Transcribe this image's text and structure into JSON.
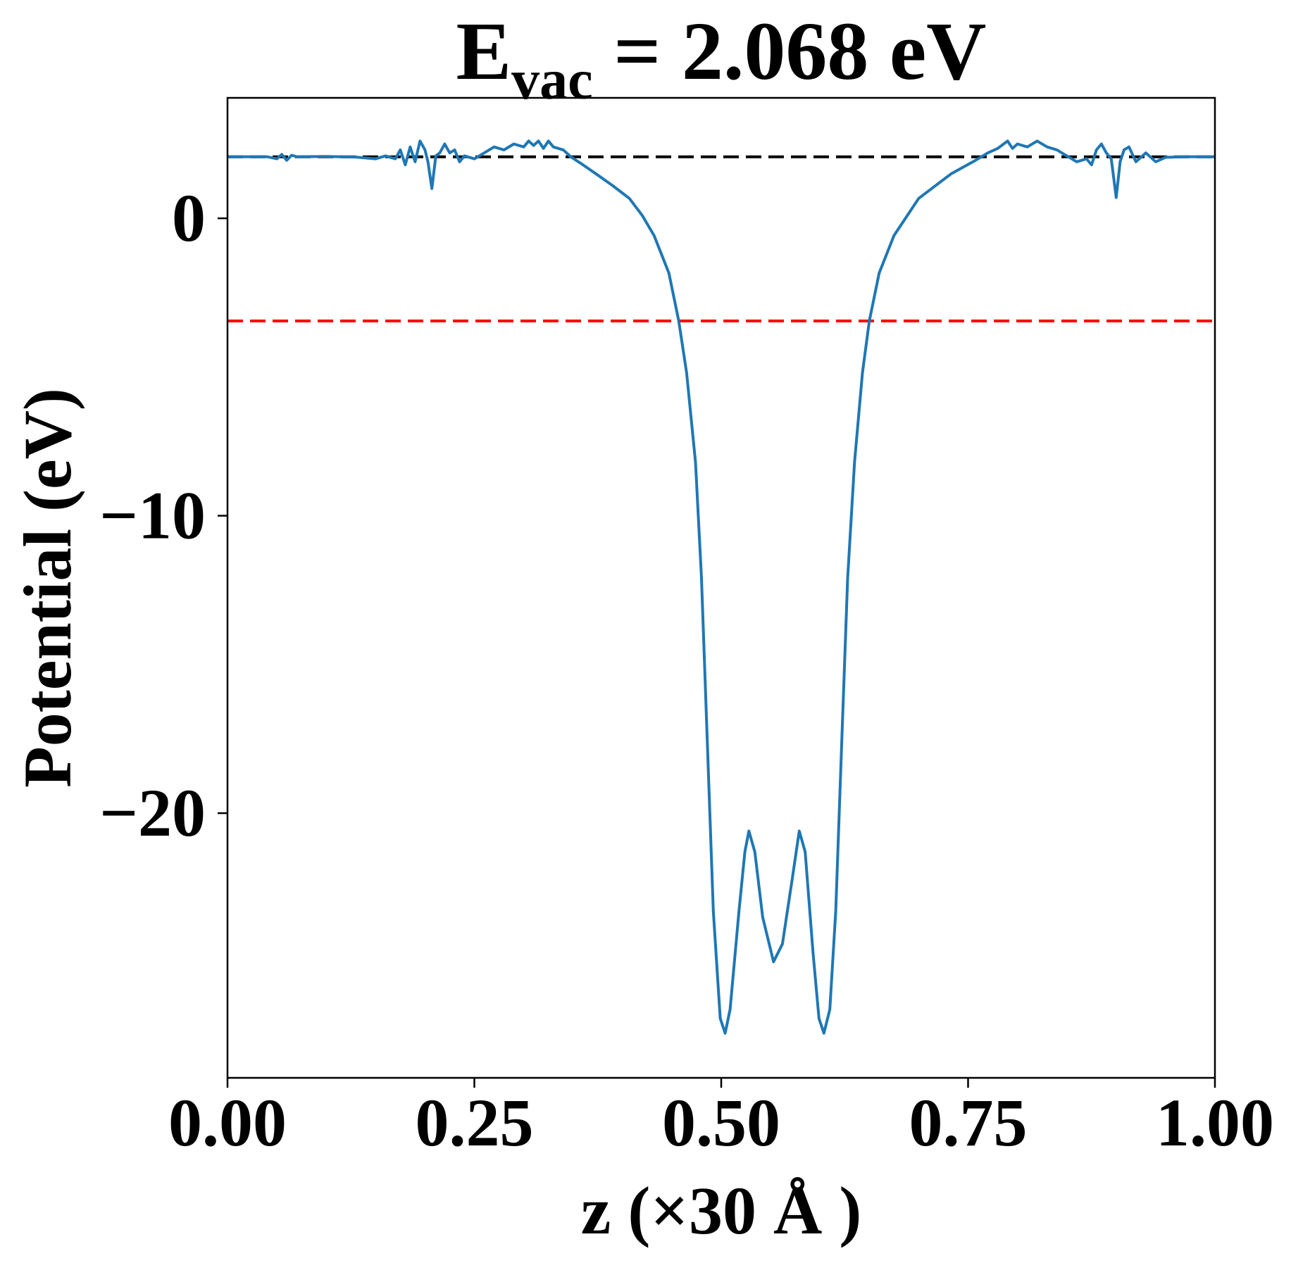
{
  "chart_data": {
    "type": "line",
    "title": {
      "main": "E",
      "sub": "vac",
      "rest": " = 2.068 eV"
    },
    "xlabel": "z (×30 Å )",
    "ylabel": "Potential (eV)",
    "xlim": [
      0,
      1
    ],
    "ylim": [
      -28.9,
      4.05
    ],
    "xticks": [
      0,
      0.25,
      0.5,
      0.75,
      1.0
    ],
    "xtick_labels": [
      "0.00",
      "0.25",
      "0.50",
      "0.75",
      "1.00"
    ],
    "yticks": [
      0,
      -10,
      -20
    ],
    "ytick_labels": [
      "0",
      "−10",
      "−20"
    ],
    "grid": false,
    "hlines": [
      {
        "y": 2.068,
        "color": "#000000",
        "style": "dashed"
      },
      {
        "y": -3.45,
        "color": "#ff0000",
        "style": "dashed"
      }
    ],
    "series": [
      {
        "color": "#1f77b4",
        "x": [
          0,
          0.02,
          0.04,
          0.05,
          0.055,
          0.06,
          0.065,
          0.07,
          0.1,
          0.13,
          0.15,
          0.16,
          0.17,
          0.175,
          0.18,
          0.185,
          0.19,
          0.195,
          0.2,
          0.203,
          0.207,
          0.211,
          0.215,
          0.22,
          0.225,
          0.23,
          0.235,
          0.24,
          0.25,
          0.26,
          0.27,
          0.28,
          0.29,
          0.3,
          0.305,
          0.31,
          0.315,
          0.32,
          0.325,
          0.33,
          0.34,
          0.348,
          0.36,
          0.373,
          0.39,
          0.407,
          0.42,
          0.432,
          0.447,
          0.457,
          0.465,
          0.474,
          0.48,
          0.486,
          0.492,
          0.499,
          0.504,
          0.509,
          0.518,
          0.524,
          0.528,
          0.534,
          0.542,
          0.553,
          0.562,
          0.572,
          0.579,
          0.585,
          0.593,
          0.599,
          0.604,
          0.61,
          0.616,
          0.622,
          0.628,
          0.635,
          0.643,
          0.65,
          0.66,
          0.675,
          0.7,
          0.733,
          0.755,
          0.763,
          0.77,
          0.78,
          0.79,
          0.795,
          0.8,
          0.81,
          0.82,
          0.83,
          0.84,
          0.85,
          0.86,
          0.87,
          0.875,
          0.88,
          0.885,
          0.89,
          0.895,
          0.9,
          0.904,
          0.908,
          0.913,
          0.92,
          0.93,
          0.94,
          0.95,
          0.97,
          1.0
        ],
        "y": [
          2.07,
          2.07,
          2.07,
          2.0,
          2.15,
          1.95,
          2.12,
          2.07,
          2.08,
          2.06,
          2.0,
          2.1,
          2.0,
          2.3,
          1.8,
          2.4,
          1.9,
          2.6,
          2.3,
          1.9,
          1.0,
          2.1,
          2.2,
          2.5,
          2.2,
          2.3,
          1.9,
          2.1,
          2.0,
          2.2,
          2.4,
          2.3,
          2.5,
          2.4,
          2.6,
          2.45,
          2.6,
          2.35,
          2.6,
          2.4,
          2.3,
          2.06,
          1.8,
          1.5,
          1.1,
          0.67,
          0.1,
          -0.58,
          -1.84,
          -3.45,
          -5.2,
          -8.2,
          -12.1,
          -17.7,
          -23.3,
          -26.9,
          -27.4,
          -26.6,
          -23.3,
          -21.3,
          -20.6,
          -21.3,
          -23.5,
          -25.0,
          -24.4,
          -22.2,
          -20.6,
          -21.3,
          -24.7,
          -26.9,
          -27.4,
          -26.6,
          -23.3,
          -17.7,
          -12.1,
          -8.2,
          -5.2,
          -3.45,
          -1.84,
          -0.58,
          0.67,
          1.5,
          1.9,
          2.06,
          2.2,
          2.35,
          2.6,
          2.35,
          2.5,
          2.4,
          2.6,
          2.4,
          2.3,
          2.1,
          1.9,
          2.0,
          1.8,
          2.3,
          2.5,
          2.2,
          2.0,
          0.7,
          1.9,
          2.3,
          2.4,
          1.9,
          2.2,
          1.9,
          2.05,
          2.07,
          2.07
        ]
      }
    ]
  }
}
